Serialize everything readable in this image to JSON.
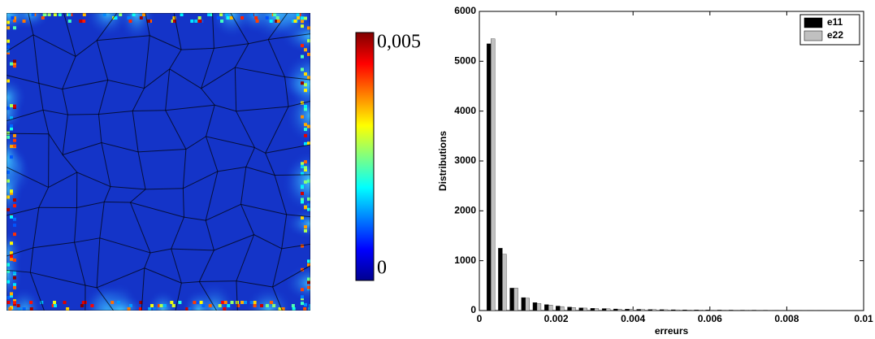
{
  "chart_data": [
    {
      "type": "heatmap",
      "colormap": "jet",
      "colorbar": {
        "clim": [
          0,
          0.005
        ],
        "ticks": [
          {
            "value": 0.005,
            "label": "0,005"
          },
          0
        ]
      }
    },
    {
      "type": "bar",
      "xlabel": "erreurs",
      "ylabel": "Distributions",
      "x": [
        0.0003,
        0.0006,
        0.0009,
        0.0012,
        0.0015,
        0.0018,
        0.0021,
        0.0024,
        0.0027,
        0.003,
        0.0033,
        0.0036,
        0.0039,
        0.0042,
        0.0045,
        0.0048,
        0.0051,
        0.0054,
        0.0057,
        0.006,
        0.0063,
        0.0066,
        0.0069,
        0.0072,
        0.0075,
        0.0078,
        0.0081,
        0.0084,
        0.0087,
        0.009,
        0.0093,
        0.0096
      ],
      "series": [
        {
          "name": "e11",
          "color": "#000000",
          "values": [
            5350,
            1250,
            450,
            260,
            160,
            120,
            90,
            70,
            55,
            45,
            40,
            32,
            28,
            24,
            20,
            18,
            16,
            14,
            12,
            11,
            10,
            9,
            8,
            8,
            7,
            6,
            6,
            5,
            5,
            4,
            4,
            3
          ]
        },
        {
          "name": "e22",
          "color": "#c0c0c0",
          "values": [
            5450,
            1130,
            450,
            250,
            140,
            110,
            80,
            60,
            50,
            40,
            35,
            30,
            26,
            22,
            19,
            17,
            15,
            13,
            12,
            10,
            9,
            8,
            8,
            7,
            6,
            6,
            5,
            5,
            4,
            4,
            3,
            3
          ]
        }
      ],
      "xlim": [
        0,
        0.01
      ],
      "xticks": [
        0,
        0.002,
        0.004,
        0.006,
        0.008,
        0.01
      ],
      "ylim": [
        0,
        6000
      ],
      "yticks": [
        0,
        1000,
        2000,
        3000,
        4000,
        5000,
        6000
      ],
      "legend": "upper-right"
    }
  ]
}
